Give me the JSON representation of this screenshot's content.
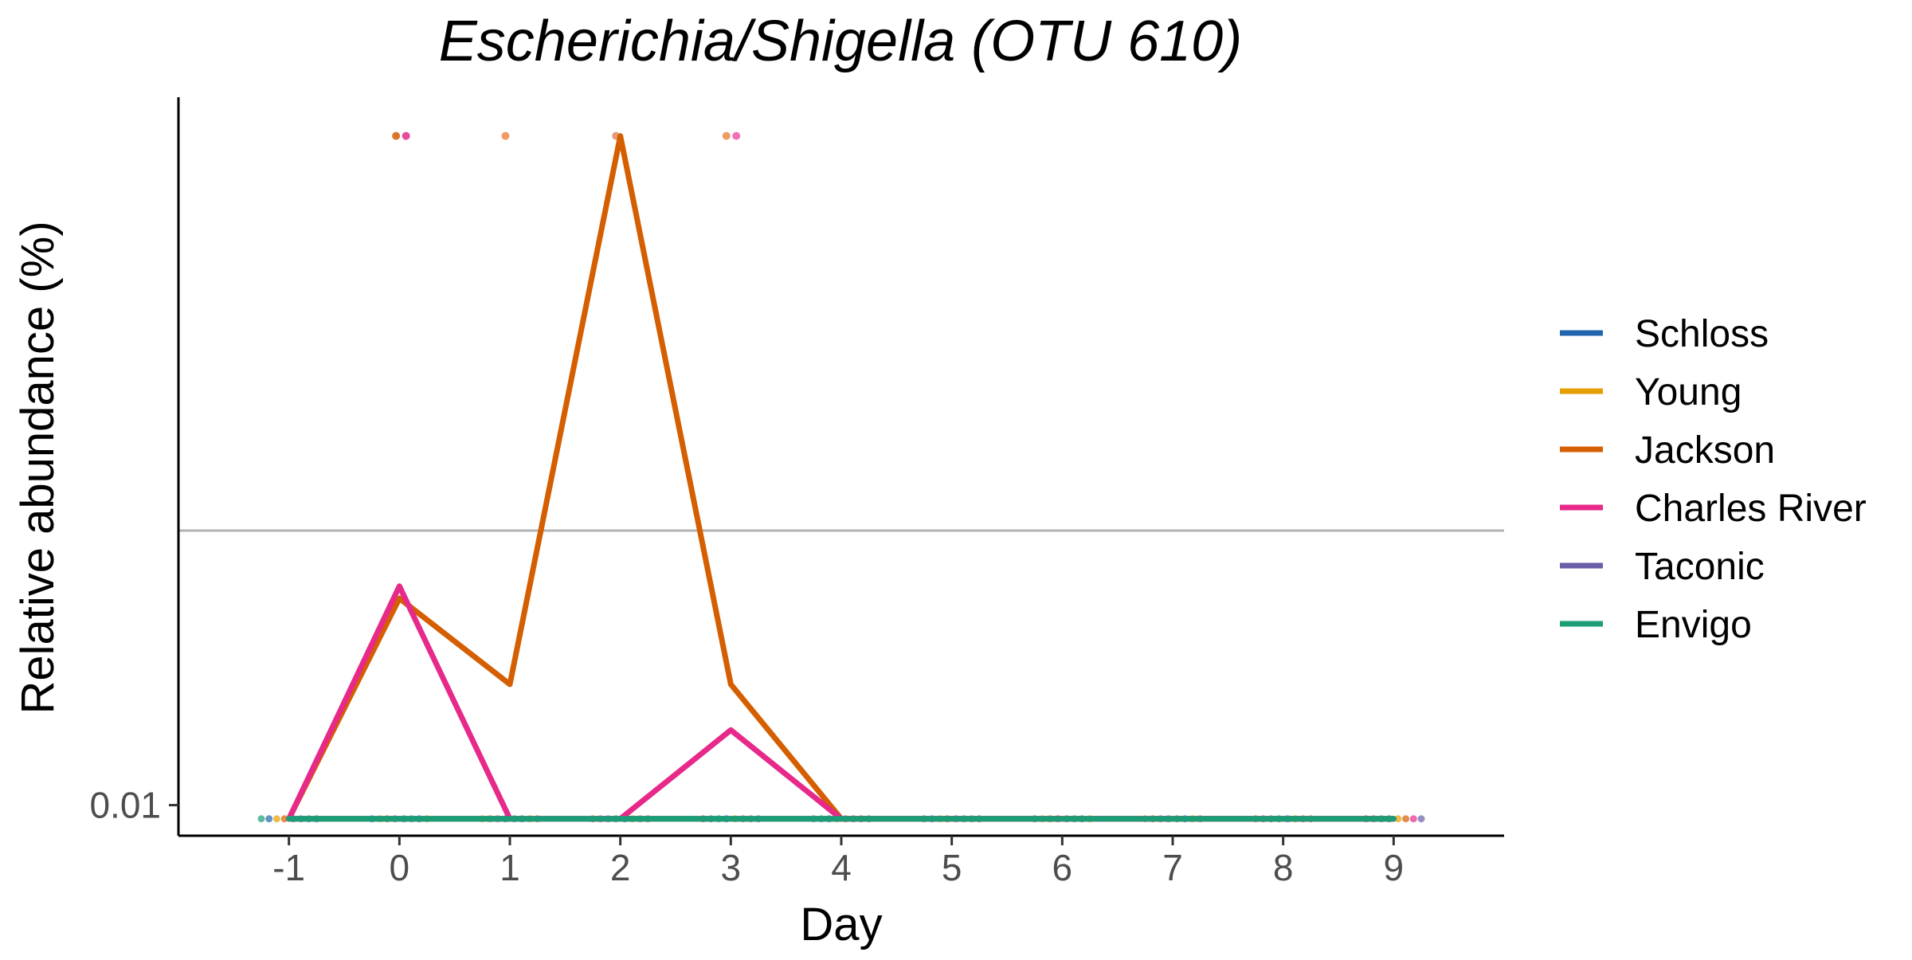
{
  "chart_data": {
    "type": "line",
    "title": "Escherichia/Shigella (OTU 610)",
    "xlabel": "Day",
    "ylabel": "Relative abundance (%)",
    "x_ticks": [
      -1,
      0,
      1,
      2,
      3,
      4,
      5,
      6,
      7,
      8,
      9
    ],
    "xlim": [
      -2.0,
      10.0
    ],
    "y_scale": "log10",
    "y_ticks": [
      {
        "value": 0.01,
        "label": "0.01"
      }
    ],
    "ylim": [
      0.0085,
      0.43
    ],
    "reference_line": {
      "y": 0.043,
      "color": "#b3b3b3"
    },
    "legend_position": "right",
    "series": [
      {
        "name": "Schloss",
        "color": "#2166ac",
        "x": [
          -1,
          0,
          1,
          2,
          3,
          4,
          5,
          6,
          7,
          8,
          9
        ],
        "y": [
          0.0093,
          0.0093,
          0.0093,
          0.0093,
          0.0093,
          0.0093,
          0.0093,
          0.0093,
          0.0093,
          0.0093,
          0.0093
        ]
      },
      {
        "name": "Young",
        "color": "#e69f00",
        "x": [
          -1,
          0,
          1,
          2,
          3,
          4,
          5,
          6,
          7,
          8,
          9
        ],
        "y": [
          0.0093,
          0.0093,
          0.0093,
          0.0093,
          0.0093,
          0.0093,
          0.0093,
          0.0093,
          0.0093,
          0.0093,
          0.0093
        ]
      },
      {
        "name": "Jackson",
        "color": "#d55e00",
        "x": [
          -1,
          0,
          1,
          2,
          3,
          4,
          5,
          6,
          7,
          8,
          9
        ],
        "y": [
          0.0093,
          0.03,
          0.019,
          0.35,
          0.019,
          0.0093,
          0.0093,
          0.0093,
          0.0093,
          0.0093,
          0.0093
        ]
      },
      {
        "name": "Charles River",
        "color": "#e7298a",
        "x": [
          -1,
          0,
          1,
          2,
          3,
          4,
          5,
          6,
          7,
          8,
          9
        ],
        "y": [
          0.0093,
          0.032,
          0.0093,
          0.0093,
          0.0149,
          0.0093,
          0.0093,
          0.0093,
          0.0093,
          0.0093,
          0.0093
        ]
      },
      {
        "name": "Taconic",
        "color": "#6a5ea8",
        "x": [
          -1,
          0,
          1,
          2,
          3,
          4,
          5,
          6,
          7,
          8,
          9
        ],
        "y": [
          0.0093,
          0.0093,
          0.0093,
          0.0093,
          0.0093,
          0.0093,
          0.0093,
          0.0093,
          0.0093,
          0.0093,
          0.0093
        ]
      },
      {
        "name": "Envigo",
        "color": "#1b9e77",
        "x": [
          -1,
          0,
          1,
          2,
          3,
          4,
          5,
          6,
          7,
          8,
          9
        ],
        "y": [
          0.0093,
          0.0093,
          0.0093,
          0.0093,
          0.0093,
          0.0093,
          0.0093,
          0.0093,
          0.0093,
          0.0093,
          0.0093
        ]
      }
    ],
    "high_points": [
      {
        "x": -0.03,
        "y": 0.35,
        "color": "#d55e00"
      },
      {
        "x": 0.06,
        "y": 0.35,
        "color": "#e7298a"
      },
      {
        "x": 0.96,
        "y": 0.35,
        "color": "#ef8a47"
      },
      {
        "x": 1.96,
        "y": 0.35,
        "color": "#e08a60"
      },
      {
        "x": 2.96,
        "y": 0.35,
        "color": "#ef8a47"
      },
      {
        "x": 3.05,
        "y": 0.35,
        "color": "#f05aa8"
      }
    ]
  }
}
